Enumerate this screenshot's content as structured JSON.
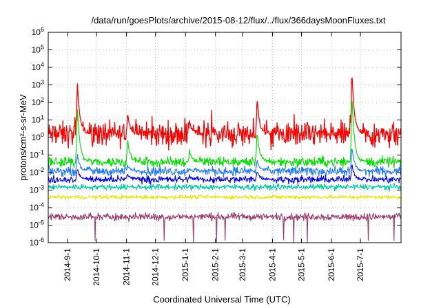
{
  "chart_data": {
    "type": "line",
    "title": "/data/run/goesPlots/archive/2015-08-12/flux/../flux/366daysMoonFluxes.txt",
    "xlabel": "Coordinated Universal Time (UTC)",
    "ylabel": "protons/cm²-s-sr-MeV",
    "y_scale": "log",
    "ylim": [
      1e-06,
      1000000.0
    ],
    "xlim": [
      "2014-08-12",
      "2015-08-12"
    ],
    "x_ticks": [
      "2014-9-1",
      "2014-10-1",
      "2014-11-1",
      "2014-12-1",
      "2015-1-1",
      "2015-2-1",
      "2015-3-1",
      "2015-4-1",
      "2015-5-1",
      "2015-6-1",
      "2015-7-1"
    ],
    "y_ticks": [
      {
        "base": "10",
        "exp": "-6"
      },
      {
        "base": "10",
        "exp": "-5"
      },
      {
        "base": "10",
        "exp": "-4"
      },
      {
        "base": "10",
        "exp": "-3"
      },
      {
        "base": "10",
        "exp": "-2"
      },
      {
        "base": "10",
        "exp": "-1"
      },
      {
        "base": "10",
        "exp": "0"
      },
      {
        "base": "10",
        "exp": "1"
      },
      {
        "base": "10",
        "exp": "2"
      },
      {
        "base": "10",
        "exp": "3"
      },
      {
        "base": "10",
        "exp": "4"
      },
      {
        "base": "10",
        "exp": "5"
      },
      {
        "base": "10",
        "exp": "6"
      }
    ],
    "grid": true,
    "events": [
      {
        "date": "2014-09-11",
        "red": 2000,
        "green": 80,
        "blue": 0.8
      },
      {
        "date": "2014-11-02",
        "red": 30,
        "green": 1,
        "blue": 0.05
      },
      {
        "date": "2015-01-05",
        "red": 10,
        "green": 0.2,
        "blue": 0.02
      },
      {
        "date": "2015-03-16",
        "red": 200,
        "green": 3,
        "blue": 0.2
      },
      {
        "date": "2015-06-22",
        "red": 9000,
        "green": 500,
        "blue": 5
      }
    ],
    "series": [
      {
        "color": "#ff0000",
        "baseline": 1.5,
        "noise": 0.6
      },
      {
        "color": "#00dd00",
        "baseline": 0.04,
        "noise": 0.25
      },
      {
        "color": "#1e78ff",
        "baseline": 0.012,
        "noise": 0.22
      },
      {
        "color": "#0000ee",
        "baseline": 0.004,
        "noise": 0.18
      },
      {
        "color": "#00c8a0",
        "baseline": 0.0015,
        "noise": 0.14
      },
      {
        "color": "#e6e600",
        "baseline": 0.0004,
        "noise": 0.1
      },
      {
        "color": "#9b3c6e",
        "baseline": 3e-05,
        "noise": 0.18
      }
    ]
  }
}
